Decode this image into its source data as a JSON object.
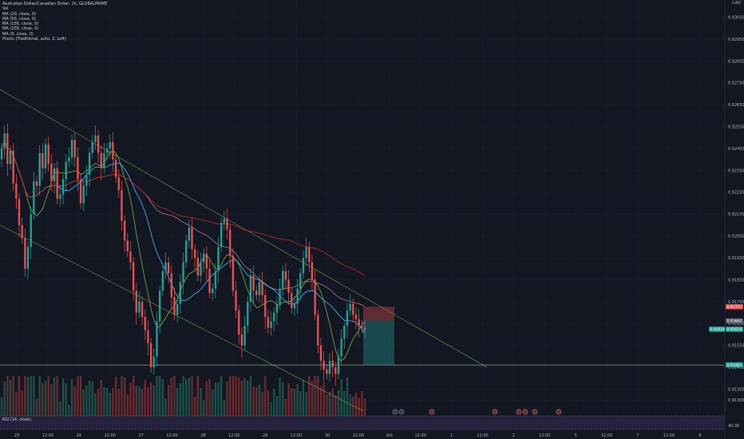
{
  "legend": {
    "symbol": "Australian Dollar/Canadian Dollar, 1h, GLOBALPRIME",
    "lines": [
      "Vol",
      "MA (20, close, 0)",
      "MA (50, close, 0)",
      "MA (100, close, 0)",
      "MA (200, close, 0)",
      "MA (9, close, 0)",
      "Pivots (Traditional, auto, 3, Left)"
    ]
  },
  "axis_corner": {
    "currency": "CAD"
  },
  "rsi": {
    "label": "RSI (14, close)",
    "value_label": "40.00"
  },
  "colors": {
    "background": "#131722",
    "up": "#26a69a",
    "down": "#ef5350",
    "ma20": "#3fa9f5",
    "ma50": "#7cb342",
    "ma100": "#f8bbd0",
    "ma200": "#c62828",
    "channel": "#9ccc65",
    "rsi_band": "#7e57c2"
  },
  "chart_data": {
    "type": "candlestick",
    "title": "Australian Dollar/Canadian Dollar, 1h, GLOBALPRIME",
    "y_range": [
      0.9125,
      0.931
    ],
    "y_ticks": [
      "0.93050",
      "0.92950",
      "0.92850",
      "0.92750",
      "0.92650",
      "0.92550",
      "0.92450",
      "0.92350",
      "0.92250",
      "0.92150",
      "0.92050",
      "0.91950",
      "0.91850",
      "0.91750",
      "0.91650",
      "0.91550",
      "0.91450",
      "0.91350",
      "0.91300"
    ],
    "x_labels": [
      "23",
      "12:00",
      "24",
      "12:00",
      "27",
      "12:00",
      "28",
      "12:00",
      "29",
      "12:00",
      "30",
      "12:00",
      "Oct",
      "12:00",
      "1",
      "12:00",
      "2",
      "12:00",
      "5",
      "12:00",
      "7",
      "12:00",
      "8"
    ],
    "price_tags": [
      {
        "text": "0.91727",
        "value": 0.91727,
        "color": "#ef5350"
      },
      {
        "text": "0.91662",
        "value": 0.91662,
        "color": "#5d606b"
      },
      {
        "text": "0.91624",
        "value": 0.91624,
        "color": "#26a69a"
      },
      {
        "text": "0.91461",
        "value": 0.91461,
        "color": "#26a69a"
      }
    ],
    "left_tag": {
      "text": "0.91624",
      "value": 0.91624
    },
    "closes": [
      0.9245,
      0.9252,
      0.9238,
      0.9244,
      0.9229,
      0.9222,
      0.921,
      0.9204,
      0.919,
      0.92,
      0.9215,
      0.923,
      0.9228,
      0.9243,
      0.9236,
      0.9247,
      0.9238,
      0.923,
      0.9236,
      0.9222,
      0.9224,
      0.9231,
      0.9239,
      0.9241,
      0.9249,
      0.9241,
      0.9231,
      0.922,
      0.9228,
      0.9233,
      0.9243,
      0.9248,
      0.9251,
      0.9243,
      0.9236,
      0.9243,
      0.9245,
      0.9248,
      0.924,
      0.9232,
      0.9226,
      0.9212,
      0.9203,
      0.9198,
      0.9193,
      0.918,
      0.917,
      0.9175,
      0.9168,
      0.9162,
      0.9156,
      0.9145,
      0.915,
      0.9166,
      0.918,
      0.9189,
      0.9193,
      0.9188,
      0.9177,
      0.9169,
      0.9174,
      0.9184,
      0.9193,
      0.9203,
      0.9209,
      0.9199,
      0.9195,
      0.9187,
      0.9193,
      0.9197,
      0.919,
      0.9179,
      0.9181,
      0.9189,
      0.92,
      0.9211,
      0.9213,
      0.9208,
      0.9196,
      0.918,
      0.9171,
      0.916,
      0.9155,
      0.9164,
      0.9175,
      0.9187,
      0.918,
      0.9178,
      0.9184,
      0.9178,
      0.9168,
      0.9163,
      0.9166,
      0.917,
      0.9174,
      0.9181,
      0.9189,
      0.9185,
      0.9179,
      0.9172,
      0.9174,
      0.9181,
      0.9188,
      0.9195,
      0.92,
      0.9193,
      0.9185,
      0.9169,
      0.9155,
      0.9148,
      0.9144,
      0.9142,
      0.9148,
      0.9145,
      0.9142,
      0.915,
      0.9158,
      0.9164,
      0.9171,
      0.9174,
      0.9169,
      0.9167,
      0.9164,
      0.9163,
      0.9162
    ]
  }
}
